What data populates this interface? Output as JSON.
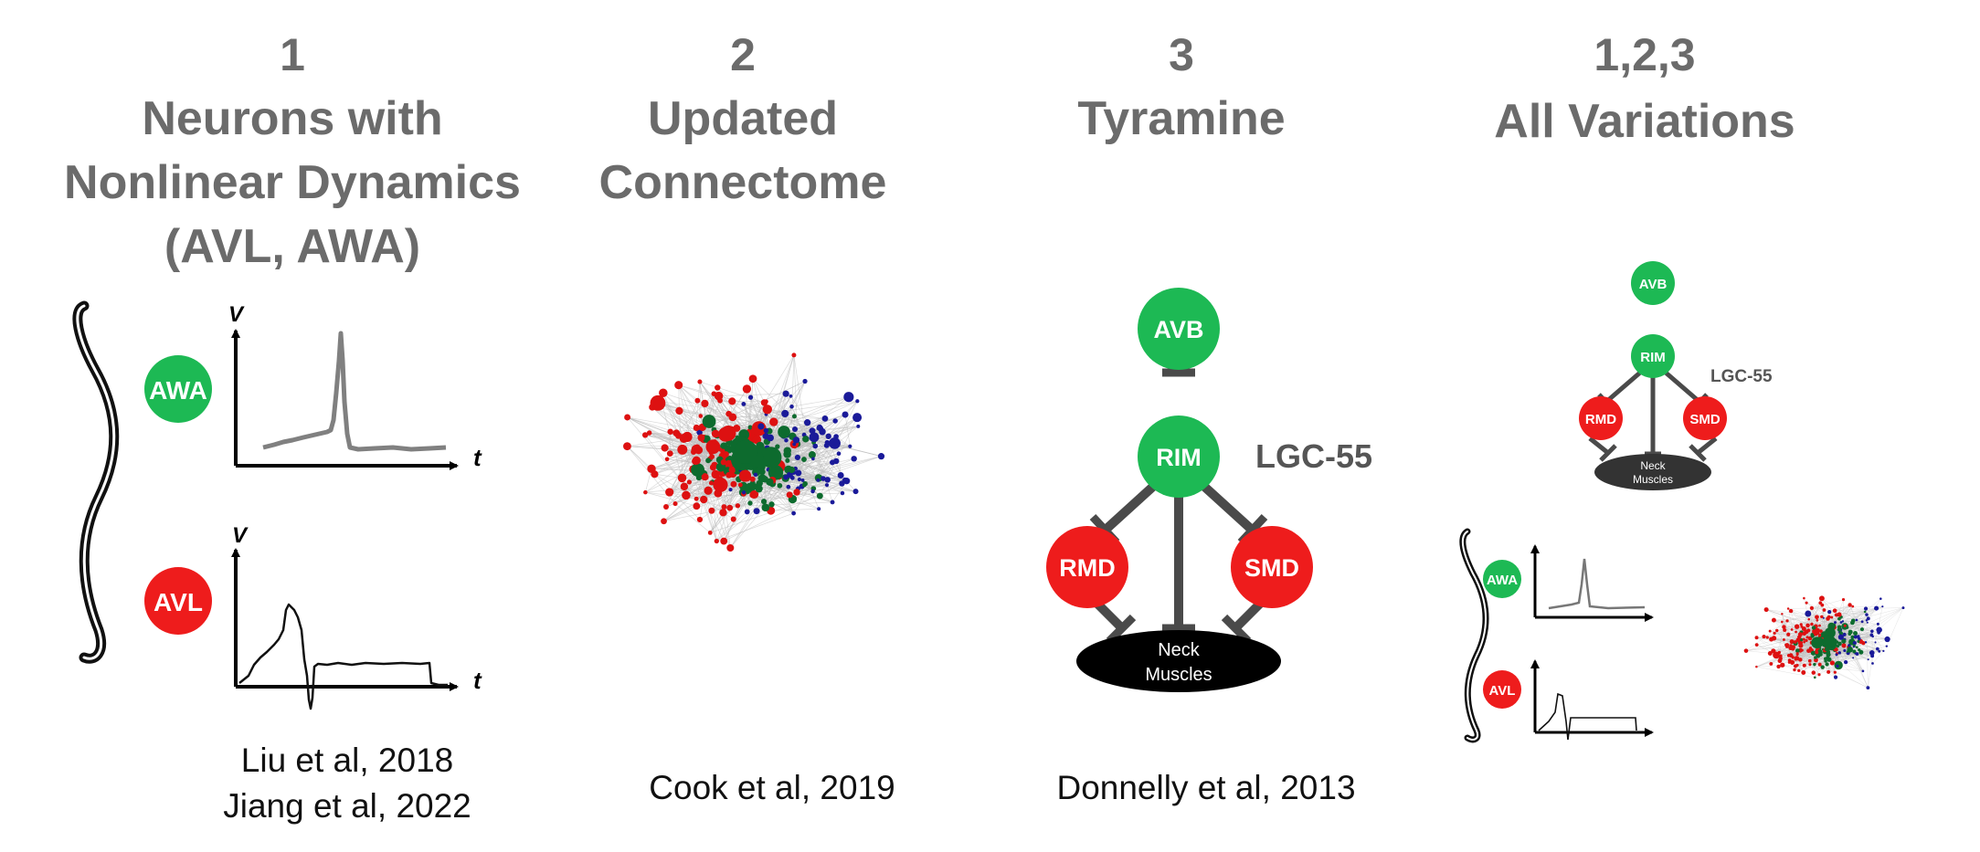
{
  "panels": [
    {
      "number": "1",
      "title_lines": [
        "Neurons with",
        "Nonlinear Dynamics",
        "(AVL, AWA)"
      ],
      "citation_lines": [
        "Liu et al, 2018",
        "Jiang et al, 2022"
      ],
      "neurons": [
        {
          "label": "AWA",
          "color": "#1db954"
        },
        {
          "label": "AVL",
          "color": "#ee1c1c"
        }
      ],
      "axis_labels": {
        "y": "V",
        "x": "t"
      }
    },
    {
      "number": "2",
      "title_lines": [
        "Updated",
        "Connectome"
      ],
      "citation_lines": [
        "Cook et al, 2019"
      ]
    },
    {
      "number": "3",
      "title_lines": [
        "Tyramine"
      ],
      "citation_lines": [
        "Donnelly et al, 2013"
      ],
      "receptor_label": "LGC-55",
      "nodes": [
        {
          "label": "AVB",
          "color": "#1db954"
        },
        {
          "label": "RIM",
          "color": "#1db954"
        },
        {
          "label": "RMD",
          "color": "#ee1c1c"
        },
        {
          "label": "SMD",
          "color": "#ee1c1c"
        }
      ],
      "muscle_lines": [
        "Neck",
        "Muscles"
      ]
    },
    {
      "number": "1,2,3",
      "title_lines": [
        "All Variations"
      ]
    }
  ],
  "colors": {
    "heading": "#6b6b6b",
    "green": "#1db954",
    "red": "#ee1c1c",
    "network_red": "#dd1111",
    "network_green": "#0d6b2e",
    "network_blue": "#1a1a99",
    "edge": "#bdbdbd",
    "connector": "#4a4a4a"
  }
}
